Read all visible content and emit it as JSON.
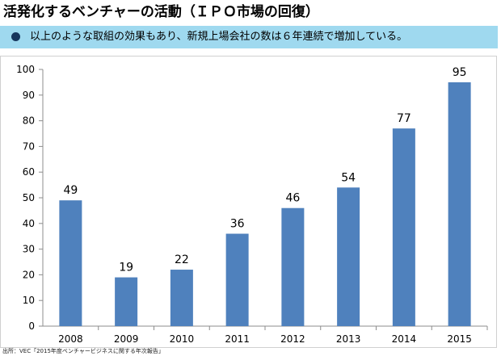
{
  "header": {
    "title": "活発化するベンチャーの活動（ＩＰＯ市場の回復）"
  },
  "summary": {
    "text": "以上のような取組の効果もあり、新規上場会社の数は６年連続で増加している。"
  },
  "chart_data": {
    "type": "bar",
    "title": "",
    "xlabel": "",
    "ylabel": "",
    "categories": [
      "2008",
      "2009",
      "2010",
      "2011",
      "2012",
      "2013",
      "2014",
      "2015"
    ],
    "values": [
      49,
      19,
      22,
      36,
      46,
      54,
      77,
      95
    ],
    "ylim": [
      0,
      100
    ],
    "yticks": [
      0,
      10,
      20,
      30,
      40,
      50,
      60,
      70,
      80,
      90,
      100
    ],
    "grid": false,
    "data_labels": true,
    "bar_color": "#4f81bd"
  },
  "footer": {
    "source": "出所：VEC「2015年度ベンチャービジネスに関する年次報告」"
  },
  "colors": {
    "summary_background": "#9fd9ef",
    "bullet": "#17365d",
    "bar": "#4f81bd",
    "axis": "#8c8c8c"
  }
}
